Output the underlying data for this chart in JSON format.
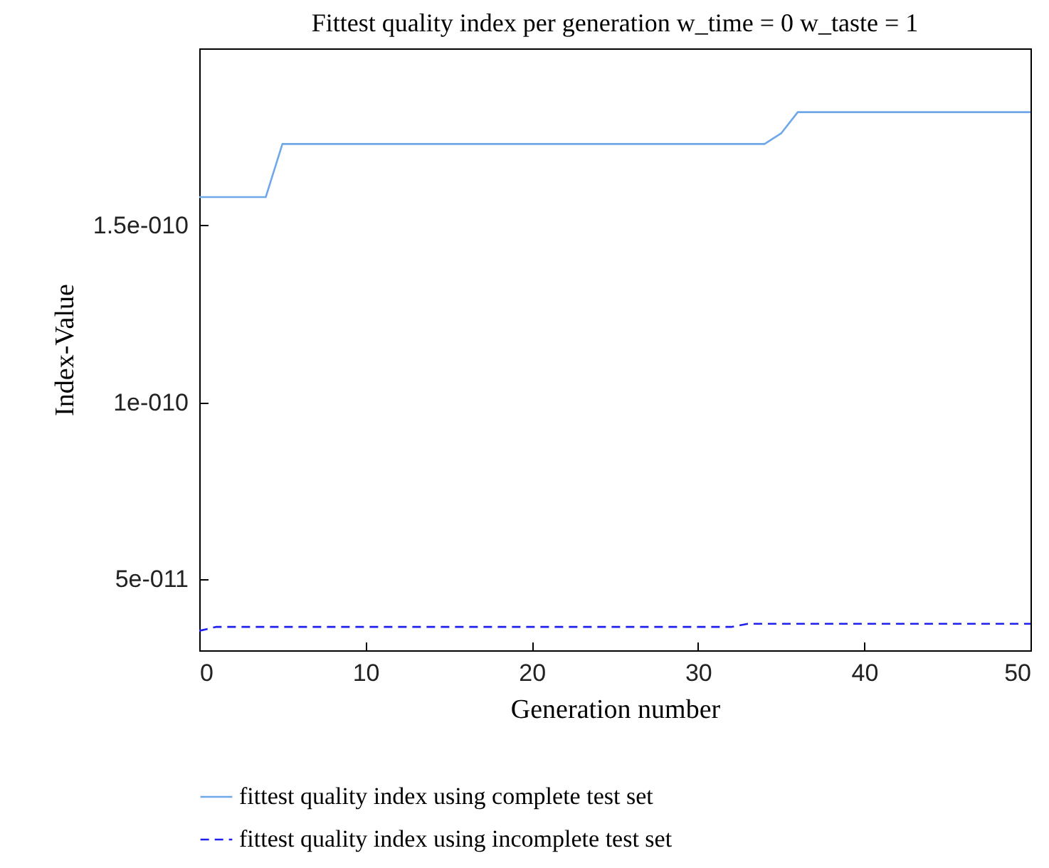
{
  "chart_data": {
    "type": "line",
    "title": "Fittest quality index per generation w_time = 0 w_taste = 1",
    "xlabel": "Generation number",
    "ylabel": "Index-Value",
    "series": [
      {
        "name": "fittest quality index using complete test set",
        "color": "#6fa8e8",
        "line_style": "solid",
        "x": [
          0,
          4,
          5,
          34,
          35,
          36,
          50
        ],
        "values": [
          1.58e-10,
          1.58e-10,
          1.73e-10,
          1.73e-10,
          1.76e-10,
          1.82e-10,
          1.82e-10
        ]
      },
      {
        "name": "fittest quality index using incomplete test set",
        "color": "#1f1fef",
        "line_style": "dashed",
        "x": [
          0,
          1,
          32,
          33,
          50
        ],
        "values": [
          3.55e-11,
          3.66e-11,
          3.66e-11,
          3.75e-11,
          3.75e-11
        ]
      }
    ],
    "xlim": [
      0,
      50
    ],
    "xticks": [
      0,
      10,
      20,
      30,
      40,
      50
    ],
    "ylim": [
      3e-11,
      2e-10
    ],
    "yticks": [
      {
        "value": 5e-11,
        "label": "5e-011"
      },
      {
        "value": 1e-10,
        "label": "1e-010"
      },
      {
        "value": 1.5e-10,
        "label": "1.5e-010"
      }
    ],
    "grid": false,
    "legend": "bottom",
    "marker": "none"
  }
}
